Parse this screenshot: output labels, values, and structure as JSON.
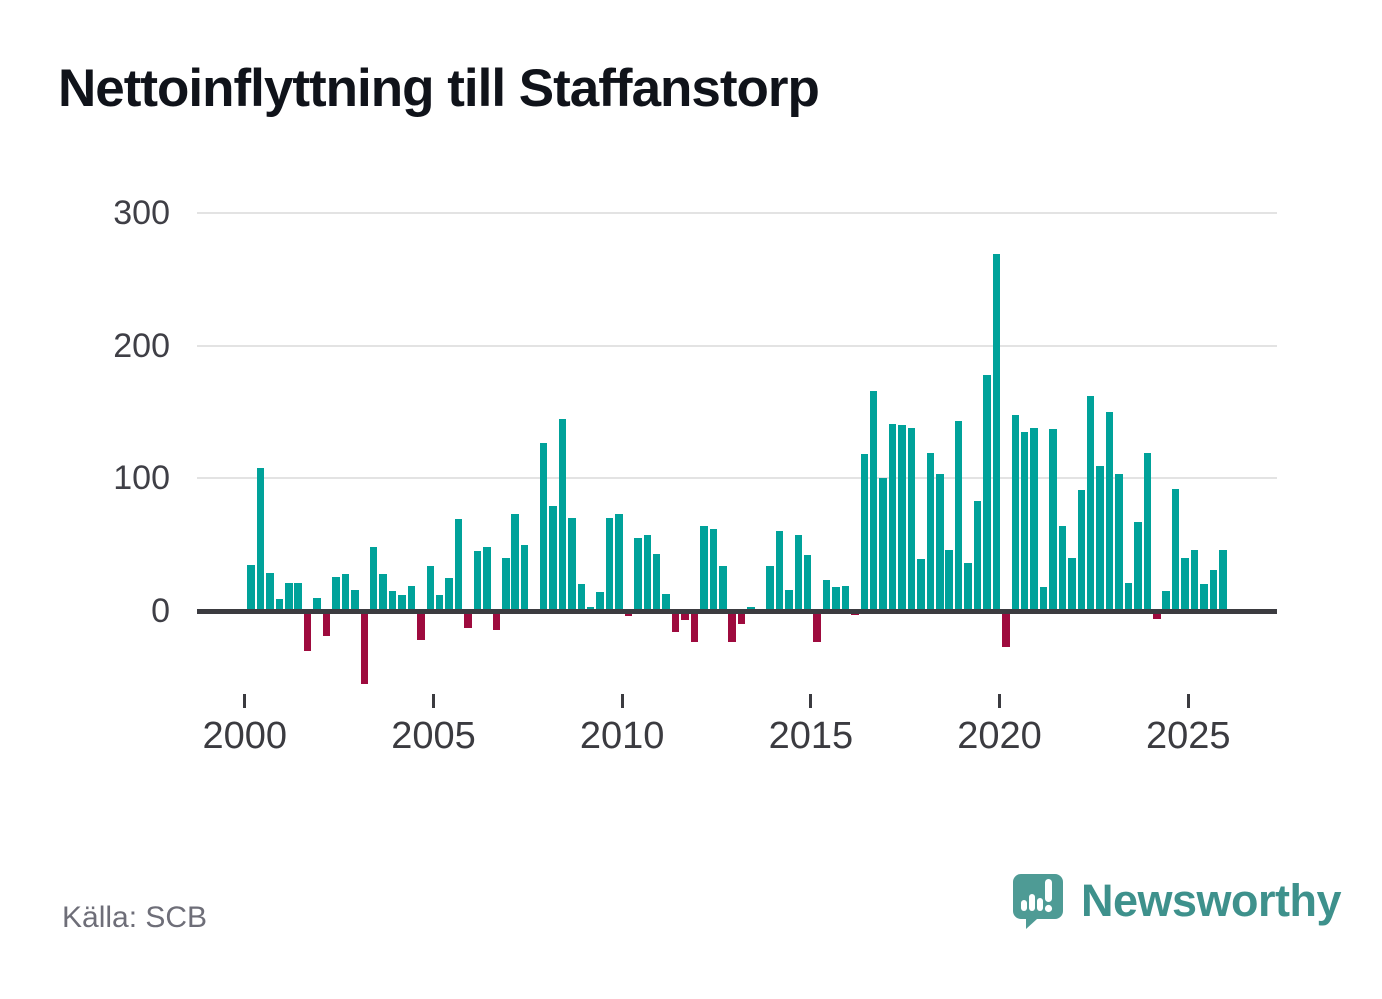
{
  "title": "Nettoinflyttning till Staffanstorp",
  "source": "Källa: SCB",
  "branding": {
    "name": "Newsworthy",
    "icon": "newsworthy-speech-bubble-bar-chart-icon"
  },
  "colors": {
    "bar_positive": "#00a29a",
    "bar_negative": "#9e0b3e",
    "gridline": "#e3e3e3",
    "axis": "#3b3b40",
    "tick_text": "#3b3b40",
    "title_text": "#10131a",
    "source_text": "#6e6e78",
    "logo_teal": "#4e9b95"
  },
  "y_axis": {
    "tick_values": [
      0,
      100,
      200,
      300
    ],
    "tick_labels": [
      "0",
      "100",
      "200",
      "300"
    ]
  },
  "x_axis": {
    "tick_values": [
      2000,
      2005,
      2010,
      2015,
      2020,
      2025
    ],
    "tick_labels": [
      "2000",
      "2005",
      "2010",
      "2015",
      "2020",
      "2025"
    ]
  },
  "chart_data": {
    "type": "bar",
    "title": "Nettoinflyttning till Staffanstorp",
    "frequency": "quarterly",
    "start_period": "2000 Q1",
    "end_period": "2025 Q4",
    "ylim": [
      -65,
      310
    ],
    "grid": "horizontal",
    "legend": "none",
    "values": [
      35,
      108,
      29,
      9,
      21,
      21,
      -30,
      10,
      -19,
      26,
      28,
      16,
      -55,
      48,
      28,
      15,
      12,
      19,
      -22,
      34,
      12,
      25,
      69,
      -13,
      45,
      48,
      -14,
      40,
      73,
      50,
      1,
      127,
      79,
      145,
      70,
      20,
      3,
      14,
      70,
      73,
      -4,
      55,
      57,
      43,
      13,
      -16,
      -7,
      -23,
      64,
      62,
      34,
      -23,
      -10,
      3,
      1,
      34,
      60,
      16,
      57,
      42,
      -23,
      23,
      18,
      19,
      -3,
      118,
      166,
      100,
      141,
      140,
      138,
      39,
      119,
      103,
      46,
      143,
      36,
      83,
      178,
      269,
      -27,
      148,
      135,
      138,
      18,
      137,
      64,
      40,
      91,
      162,
      109,
      150,
      103,
      21,
      67,
      119,
      -6,
      15,
      92,
      40,
      46,
      20,
      31,
      46
    ]
  }
}
